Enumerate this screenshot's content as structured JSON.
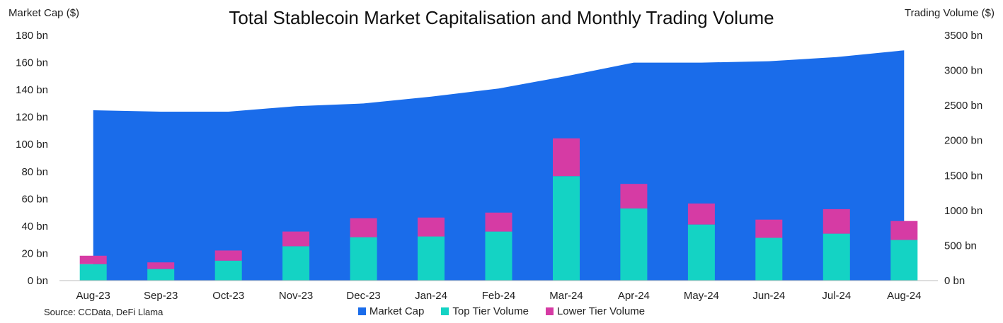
{
  "chart_data": {
    "type": "bar",
    "title": "Total Stablecoin Market Capitalisation and Monthly Trading Volume",
    "ylabel_left": "Market Cap ($)",
    "ylabel_right": "Trading Volume ($)",
    "source": "Source: CCData, DeFi Llama",
    "categories": [
      "Aug-23",
      "Sep-23",
      "Oct-23",
      "Nov-23",
      "Dec-23",
      "Jan-24",
      "Feb-24",
      "Mar-24",
      "Apr-24",
      "May-24",
      "Jun-24",
      "Jul-24",
      "Aug-24"
    ],
    "left_axis": {
      "min": 0,
      "max": 180,
      "ticks": [
        "0 bn",
        "20 bn",
        "40 bn",
        "60 bn",
        "80 bn",
        "100 bn",
        "120 bn",
        "140 bn",
        "160 bn",
        "180 bn"
      ]
    },
    "right_axis": {
      "min": 0,
      "max": 3500,
      "ticks": [
        "0 bn",
        "500 bn",
        "1000 bn",
        "1500 bn",
        "2000 bn",
        "2500 bn",
        "3000 bn",
        "3500 bn"
      ]
    },
    "series": [
      {
        "name": "Market Cap",
        "type": "area",
        "axis": "left",
        "color": "#1a6cea",
        "values": [
          125,
          124,
          124,
          128,
          130,
          135,
          141,
          150,
          160,
          160,
          161,
          164,
          169
        ]
      },
      {
        "name": "Top Tier Volume",
        "type": "bar",
        "axis": "right",
        "color": "#14d3c4",
        "values": [
          235,
          165,
          285,
          490,
          620,
          630,
          700,
          1490,
          1030,
          800,
          610,
          670,
          580
        ]
      },
      {
        "name": "Lower Tier Volume",
        "type": "bar",
        "axis": "right",
        "color": "#d63ba4",
        "values": [
          120,
          95,
          145,
          210,
          270,
          270,
          270,
          540,
          350,
          300,
          260,
          350,
          270
        ]
      }
    ],
    "legend_position": "bottom",
    "grid": false
  }
}
